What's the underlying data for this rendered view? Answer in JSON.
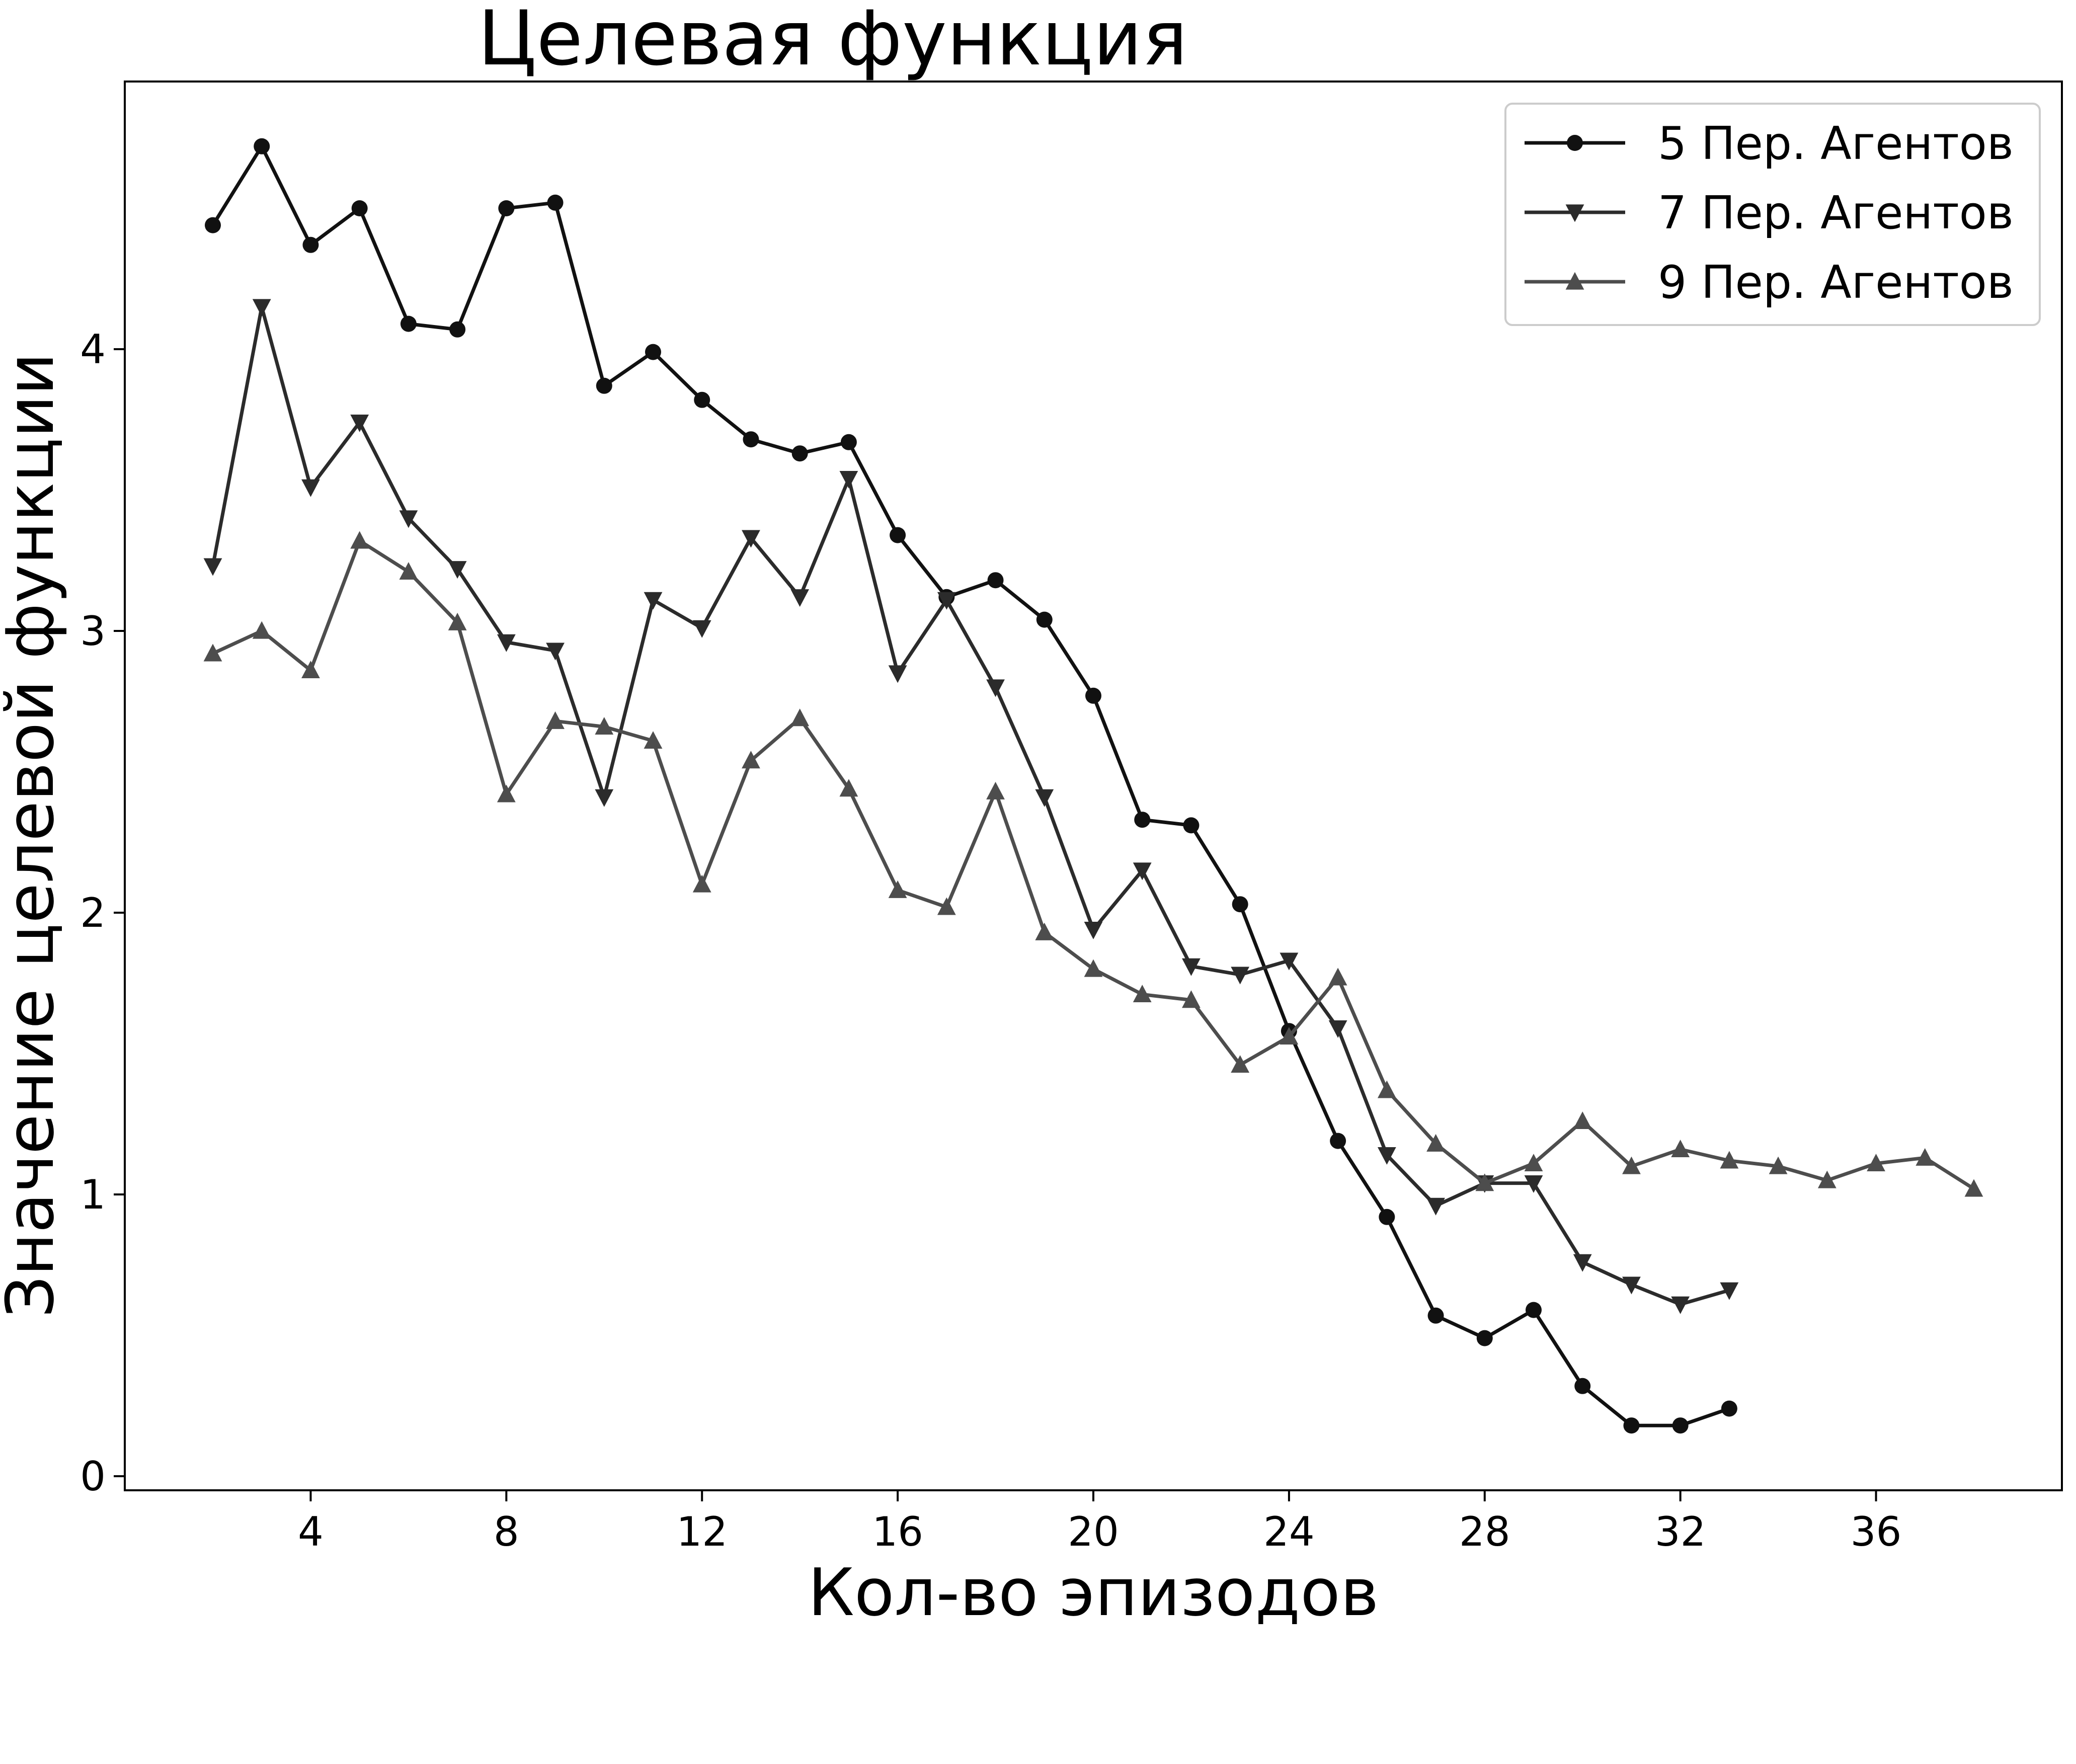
{
  "chart_data": {
    "type": "line",
    "title": "Целевая функция",
    "xlabel": "Кол-во эпизодов",
    "ylabel": "Значение целевой функции",
    "xlim": [
      0.2,
      39.8
    ],
    "ylim": [
      -0.05,
      4.95
    ],
    "xticks": [
      4,
      8,
      12,
      16,
      20,
      24,
      28,
      32,
      36
    ],
    "yticks": [
      0,
      1,
      2,
      3,
      4
    ],
    "grid": false,
    "legend_position": "top-right",
    "series": [
      {
        "name": "5 Пер. Агентов",
        "marker": "circle",
        "color": "#111111",
        "x": [
          2,
          3,
          4,
          5,
          6,
          7,
          8,
          9,
          10,
          11,
          12,
          13,
          14,
          15,
          16,
          17,
          18,
          19,
          20,
          21,
          22,
          23,
          24,
          25,
          26,
          27,
          28,
          29,
          30,
          31,
          32,
          33
        ],
        "y": [
          4.44,
          4.72,
          4.37,
          4.5,
          4.09,
          4.07,
          4.5,
          4.52,
          3.87,
          3.99,
          3.82,
          3.68,
          3.63,
          3.67,
          3.34,
          3.12,
          3.18,
          3.04,
          2.77,
          2.33,
          2.31,
          2.03,
          1.58,
          1.19,
          0.92,
          0.57,
          0.49,
          0.59,
          0.32,
          0.18,
          0.18,
          0.24
        ]
      },
      {
        "name": "7 Пер. Агентов",
        "marker": "triangle-down",
        "color": "#2b2b2b",
        "x": [
          2,
          3,
          4,
          5,
          6,
          7,
          8,
          9,
          10,
          11,
          12,
          13,
          14,
          15,
          16,
          17,
          18,
          19,
          20,
          21,
          22,
          23,
          24,
          25,
          26,
          27,
          28,
          29,
          30,
          31,
          32,
          33
        ],
        "y": [
          3.23,
          4.15,
          3.51,
          3.74,
          3.4,
          3.22,
          2.96,
          2.93,
          2.41,
          3.11,
          3.01,
          3.33,
          3.12,
          3.54,
          2.85,
          3.11,
          2.8,
          2.41,
          1.94,
          2.15,
          1.81,
          1.78,
          1.83,
          1.59,
          1.14,
          0.96,
          1.04,
          1.04,
          0.76,
          0.68,
          0.61,
          0.66
        ]
      },
      {
        "name": "9 Пер. Агентов",
        "marker": "triangle-up",
        "color": "#4d4d4d",
        "x": [
          2,
          3,
          4,
          5,
          6,
          7,
          8,
          9,
          10,
          11,
          12,
          13,
          14,
          15,
          16,
          17,
          18,
          19,
          20,
          21,
          22,
          23,
          24,
          25,
          26,
          27,
          28,
          29,
          30,
          31,
          32,
          33,
          34,
          35,
          36,
          37,
          38
        ],
        "y": [
          2.92,
          3.0,
          2.86,
          3.32,
          3.21,
          3.03,
          2.42,
          2.68,
          2.66,
          2.61,
          2.1,
          2.54,
          2.69,
          2.44,
          2.08,
          2.02,
          2.43,
          1.93,
          1.8,
          1.71,
          1.69,
          1.46,
          1.56,
          1.77,
          1.37,
          1.18,
          1.04,
          1.11,
          1.26,
          1.1,
          1.16,
          1.12,
          1.1,
          1.05,
          1.11,
          1.13,
          1.02
        ]
      }
    ]
  }
}
